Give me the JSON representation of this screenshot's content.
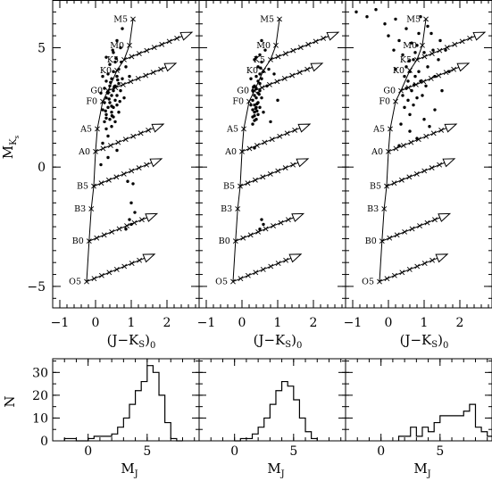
{
  "chart_data": [
    {
      "type": "scatter",
      "panel": "cmd-1",
      "xlabel": "(J−K_S)_0",
      "ylabel": "M_Ks",
      "xlim": [
        -1.2,
        2.9
      ],
      "ylim": [
        7.0,
        -5.9
      ],
      "xticks": [
        -1,
        0,
        1,
        2
      ],
      "yticks": [
        -5,
        0,
        5
      ],
      "points": [
        [
          0.85,
          -2.6
        ],
        [
          0.95,
          -2.2
        ],
        [
          1.0,
          -2.4
        ],
        [
          1.1,
          -1.9
        ],
        [
          1.0,
          -1.5
        ],
        [
          0.9,
          -0.6
        ],
        [
          1.05,
          -0.7
        ],
        [
          0.15,
          0.1
        ],
        [
          0.35,
          0.4
        ],
        [
          0.6,
          0.7
        ],
        [
          0.2,
          1.0
        ],
        [
          0.35,
          1.3
        ],
        [
          0.3,
          1.6
        ],
        [
          0.45,
          1.7
        ],
        [
          0.25,
          1.9
        ],
        [
          0.4,
          2.0
        ],
        [
          0.5,
          2.1
        ],
        [
          0.3,
          2.2
        ],
        [
          0.45,
          2.3
        ],
        [
          0.2,
          2.4
        ],
        [
          0.35,
          2.5
        ],
        [
          0.5,
          2.5
        ],
        [
          0.6,
          2.6
        ],
        [
          0.25,
          2.7
        ],
        [
          0.4,
          2.7
        ],
        [
          0.55,
          2.8
        ],
        [
          0.3,
          2.9
        ],
        [
          0.45,
          3.0
        ],
        [
          0.6,
          3.0
        ],
        [
          0.35,
          3.1
        ],
        [
          0.5,
          3.2
        ],
        [
          0.7,
          3.2
        ],
        [
          0.25,
          3.3
        ],
        [
          0.4,
          3.4
        ],
        [
          0.55,
          3.4
        ],
        [
          0.65,
          3.5
        ],
        [
          0.3,
          3.6
        ],
        [
          0.45,
          3.7
        ],
        [
          0.6,
          3.8
        ],
        [
          0.75,
          3.7
        ],
        [
          0.35,
          3.9
        ],
        [
          0.5,
          4.0
        ],
        [
          0.65,
          4.1
        ],
        [
          0.4,
          4.3
        ],
        [
          0.55,
          4.4
        ],
        [
          0.3,
          4.6
        ],
        [
          0.5,
          4.8
        ],
        [
          0.7,
          5.0
        ],
        [
          0.6,
          5.3
        ],
        [
          0.75,
          5.8
        ],
        [
          0.85,
          4.2
        ],
        [
          0.95,
          3.8
        ],
        [
          0.2,
          3.8
        ],
        [
          0.15,
          3.1
        ],
        [
          0.8,
          2.9
        ],
        [
          0.65,
          2.3
        ],
        [
          0.3,
          2.05
        ],
        [
          0.55,
          1.9
        ],
        [
          0.45,
          2.55
        ],
        [
          0.38,
          2.85
        ],
        [
          0.52,
          3.35
        ],
        [
          0.42,
          3.55
        ],
        [
          0.58,
          4.55
        ],
        [
          0.48,
          4.9
        ],
        [
          0.62,
          3.65
        ],
        [
          0.28,
          2.35
        ],
        [
          0.72,
          4.4
        ],
        [
          0.68,
          2.75
        ],
        [
          0.34,
          3.15
        ],
        [
          0.46,
          2.15
        ]
      ]
    },
    {
      "type": "scatter",
      "panel": "cmd-2",
      "xlabel": "(J−K_S)_0",
      "xlim": [
        -1.2,
        2.9
      ],
      "ylim": [
        7.0,
        -5.9
      ],
      "xticks": [
        -1,
        0,
        1,
        2
      ],
      "points": [
        [
          0.5,
          -2.6
        ],
        [
          0.55,
          -2.2
        ],
        [
          0.6,
          -2.4
        ],
        [
          0.35,
          0.8
        ],
        [
          0.3,
          1.8
        ],
        [
          0.35,
          1.95
        ],
        [
          0.4,
          2.0
        ],
        [
          0.3,
          2.1
        ],
        [
          0.45,
          2.2
        ],
        [
          0.35,
          2.3
        ],
        [
          0.3,
          2.4
        ],
        [
          0.4,
          2.5
        ],
        [
          0.5,
          2.5
        ],
        [
          0.35,
          2.6
        ],
        [
          0.45,
          2.7
        ],
        [
          0.3,
          2.8
        ],
        [
          0.4,
          2.9
        ],
        [
          0.55,
          2.9
        ],
        [
          0.35,
          3.0
        ],
        [
          0.45,
          3.1
        ],
        [
          0.3,
          3.2
        ],
        [
          0.5,
          3.2
        ],
        [
          0.4,
          3.3
        ],
        [
          0.35,
          3.4
        ],
        [
          0.5,
          3.5
        ],
        [
          0.45,
          3.6
        ],
        [
          0.55,
          3.7
        ],
        [
          0.4,
          3.8
        ],
        [
          0.5,
          3.9
        ],
        [
          0.6,
          4.0
        ],
        [
          0.45,
          4.2
        ],
        [
          0.55,
          4.4
        ],
        [
          0.35,
          4.5
        ],
        [
          0.5,
          4.7
        ],
        [
          0.65,
          4.9
        ],
        [
          0.55,
          5.3
        ],
        [
          0.25,
          2.6
        ],
        [
          0.6,
          2.3
        ],
        [
          0.7,
          3.4
        ],
        [
          0.75,
          4.1
        ],
        [
          0.9,
          3.9
        ],
        [
          1.0,
          2.8
        ],
        [
          0.8,
          1.9
        ],
        [
          0.25,
          3.7
        ],
        [
          0.35,
          2.15
        ],
        [
          0.42,
          2.35
        ],
        [
          0.38,
          2.45
        ],
        [
          0.48,
          3.05
        ],
        [
          0.32,
          3.35
        ],
        [
          0.42,
          2.65
        ],
        [
          0.52,
          4.15
        ],
        [
          0.4,
          4.6
        ]
      ]
    },
    {
      "type": "scatter",
      "panel": "cmd-3",
      "xlabel": "(J−K_S)_0",
      "xlim": [
        -1.2,
        2.9
      ],
      "ylim": [
        7.0,
        -5.9
      ],
      "xticks": [
        -1,
        0,
        1,
        2
      ],
      "points": [
        [
          -0.9,
          6.5
        ],
        [
          -0.6,
          6.3
        ],
        [
          -0.35,
          6.6
        ],
        [
          -0.1,
          6.0
        ],
        [
          0.0,
          5.5
        ],
        [
          0.2,
          6.2
        ],
        [
          0.15,
          4.9
        ],
        [
          0.3,
          5.3
        ],
        [
          0.4,
          4.7
        ],
        [
          0.5,
          4.2
        ],
        [
          0.55,
          3.6
        ],
        [
          0.6,
          4.0
        ],
        [
          0.65,
          3.2
        ],
        [
          0.7,
          4.5
        ],
        [
          0.75,
          3.8
        ],
        [
          0.8,
          5.1
        ],
        [
          0.85,
          4.0
        ],
        [
          0.9,
          3.6
        ],
        [
          1.0,
          4.8
        ],
        [
          1.05,
          3.4
        ],
        [
          1.1,
          4.2
        ],
        [
          1.2,
          5.6
        ],
        [
          1.3,
          3.8
        ],
        [
          1.4,
          4.5
        ],
        [
          1.5,
          3.2
        ],
        [
          1.6,
          4.9
        ],
        [
          1.7,
          4.0
        ],
        [
          0.45,
          2.5
        ],
        [
          0.55,
          2.8
        ],
        [
          0.6,
          2.2
        ],
        [
          0.7,
          2.6
        ],
        [
          0.8,
          2.9
        ],
        [
          0.4,
          3.0
        ],
        [
          0.5,
          3.3
        ],
        [
          0.35,
          1.8
        ],
        [
          0.6,
          1.5
        ],
        [
          0.8,
          1.2
        ],
        [
          0.3,
          0.9
        ],
        [
          1.0,
          2.0
        ],
        [
          1.15,
          1.7
        ],
        [
          1.3,
          2.4
        ],
        [
          0.95,
          3.0
        ],
        [
          0.65,
          5.2
        ],
        [
          0.85,
          5.6
        ],
        [
          1.1,
          5.9
        ],
        [
          0.5,
          5.8
        ],
        [
          0.9,
          6.3
        ],
        [
          0.2,
          4.1
        ],
        [
          1.25,
          4.9
        ],
        [
          0.45,
          3.8
        ],
        [
          0.75,
          4.8
        ],
        [
          1.45,
          5.3
        ],
        [
          0.58,
          4.45
        ],
        [
          0.72,
          3.45
        ]
      ]
    },
    {
      "type": "bar",
      "panel": "hist-1",
      "xlabel": "M_J",
      "ylabel": "N",
      "xlim": [
        -3.0,
        9.4
      ],
      "ylim": [
        0,
        36
      ],
      "xticks": [
        0,
        5
      ],
      "yticks": [
        0,
        10,
        20,
        30
      ],
      "bin_width": 0.5,
      "bin_start": -2.0,
      "values": [
        1,
        1,
        0,
        0,
        1,
        2,
        2,
        2,
        3,
        6,
        10,
        16,
        22,
        26,
        33,
        30,
        20,
        8,
        1,
        0
      ]
    },
    {
      "type": "bar",
      "panel": "hist-2",
      "xlabel": "M_J",
      "xlim": [
        -3.0,
        9.4
      ],
      "ylim": [
        0,
        36
      ],
      "xticks": [
        0,
        5
      ],
      "bin_width": 0.5,
      "bin_start": 0.0,
      "values": [
        0,
        1,
        1,
        3,
        6,
        10,
        16,
        22,
        26,
        24,
        18,
        10,
        4,
        1
      ]
    },
    {
      "type": "bar",
      "panel": "hist-3",
      "xlabel": "M_J",
      "xlim": [
        -3.0,
        9.4
      ],
      "ylim": [
        0,
        36
      ],
      "xticks": [
        0,
        5
      ],
      "bin_width": 0.5,
      "bin_start": 1.5,
      "values": [
        2,
        2,
        6,
        2,
        6,
        4,
        8,
        11,
        11,
        11,
        11,
        13,
        16,
        6,
        4,
        2,
        0
      ]
    }
  ],
  "sequence": {
    "labels": [
      "O5",
      "B0",
      "B3",
      "B5",
      "A0",
      "A5",
      "F0",
      "G0",
      "K0",
      "K5",
      "M0",
      "M5"
    ],
    "x": [
      -0.25,
      -0.18,
      -0.12,
      -0.05,
      0.0,
      0.05,
      0.2,
      0.35,
      0.6,
      0.8,
      0.95,
      1.05
    ],
    "y": [
      -4.8,
      -3.1,
      -1.75,
      -0.8,
      0.65,
      1.6,
      2.75,
      3.2,
      4.05,
      4.5,
      5.1,
      6.2
    ]
  },
  "reddening_vector_tracks": [
    {
      "from": "O5",
      "dx": 1.9,
      "dy": 1.15
    },
    {
      "from": "B0",
      "dx": 1.9,
      "dy": 1.15
    },
    {
      "from": "B5",
      "dx": 1.9,
      "dy": 1.15
    },
    {
      "from": "A0",
      "dx": 1.9,
      "dy": 1.15
    },
    {
      "from": "G0",
      "dx": 1.9,
      "dy": 1.15
    },
    {
      "from": "K5",
      "dx": 1.9,
      "dy": 1.15
    }
  ]
}
